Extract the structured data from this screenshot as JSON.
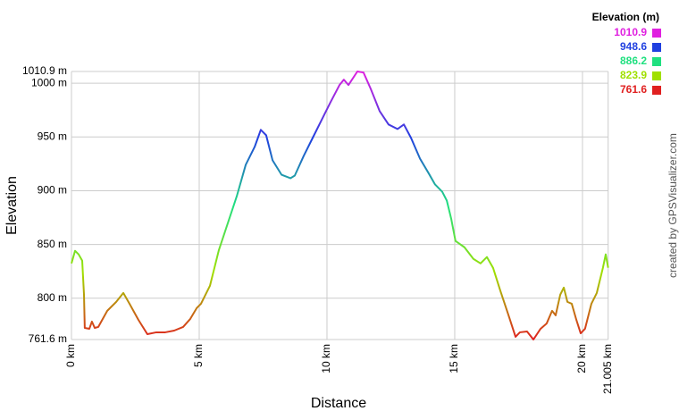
{
  "chart_data": {
    "type": "line",
    "x_label": "Distance",
    "y_label": "Elevation",
    "credit": "created by GPSVisualizer.com",
    "legend": {
      "title": "Elevation (m)",
      "corner": "top-right",
      "items": [
        {
          "value": 1010.9,
          "color": "#e020e0"
        },
        {
          "value": 948.6,
          "color": "#2040e0"
        },
        {
          "value": 886.2,
          "color": "#20e080"
        },
        {
          "value": 823.9,
          "color": "#a0e000"
        },
        {
          "value": 761.6,
          "color": "#e02020"
        }
      ]
    },
    "grid": true,
    "xlim": [
      0,
      21.005
    ],
    "xticks": [
      {
        "value": 0,
        "label": "0 km"
      },
      {
        "value": 5,
        "label": "5 km"
      },
      {
        "value": 10,
        "label": "10 km"
      },
      {
        "value": 15,
        "label": "15 km"
      },
      {
        "value": 20,
        "label": "20 km"
      },
      {
        "value": 21.005,
        "label": "21.005 km"
      }
    ],
    "ylim": [
      761.6,
      1010.9
    ],
    "yticks": [
      {
        "value": 761.6,
        "label": "761.6 m"
      },
      {
        "value": 800,
        "label": "800 m"
      },
      {
        "value": 850,
        "label": "850 m"
      },
      {
        "value": 900,
        "label": "900 m"
      },
      {
        "value": 950,
        "label": "950 m"
      },
      {
        "value": 1000,
        "label": "1000 m"
      },
      {
        "value": 1010.9,
        "label": "1010.9 m"
      }
    ],
    "x": [
      0,
      0.14,
      0.28,
      0.42,
      0.49,
      0.52,
      0.7,
      0.8,
      0.91,
      1.05,
      1.4,
      1.75,
      2.03,
      2.27,
      2.62,
      2.97,
      3.32,
      3.67,
      4.02,
      4.37,
      4.65,
      4.9,
      5.07,
      5.42,
      5.77,
      6.12,
      6.47,
      6.82,
      7.17,
      7.41,
      7.62,
      7.87,
      8.22,
      8.57,
      8.74,
      9.09,
      9.44,
      9.79,
      10.14,
      10.49,
      10.66,
      10.84,
      11.19,
      11.43,
      11.71,
      12.06,
      12.41,
      12.76,
      13.01,
      13.29,
      13.64,
      13.99,
      14.23,
      14.51,
      14.69,
      14.86,
      15.03,
      15.38,
      15.73,
      16.01,
      16.26,
      16.5,
      16.78,
      17.13,
      17.38,
      17.55,
      17.83,
      18.08,
      18.36,
      18.6,
      18.81,
      18.95,
      19.13,
      19.27,
      19.41,
      19.58,
      19.76,
      19.93,
      20.1,
      20.35,
      20.56,
      20.8,
      20.91,
      21.005
    ],
    "values": [
      832.4,
      844.1,
      840.8,
      834.9,
      803.3,
      772.4,
      771.6,
      778.3,
      772.4,
      773.3,
      788.3,
      796.6,
      804.9,
      794.9,
      779.9,
      766.6,
      768.3,
      768.3,
      769.9,
      773.3,
      780.8,
      790.8,
      794.9,
      811.6,
      844.9,
      869.9,
      894.9,
      924.1,
      940.8,
      956.6,
      951.6,
      928.3,
      914.9,
      911.6,
      914.1,
      932.4,
      949.1,
      965.8,
      982.4,
      998.3,
      1003.3,
      998.3,
      1010.9,
      1009.9,
      994.9,
      974.1,
      961.6,
      957.4,
      961.6,
      949.1,
      929.9,
      915.8,
      905.8,
      899.1,
      890.8,
      874.1,
      853.3,
      847.4,
      836.6,
      832.4,
      838.3,
      828.3,
      807.4,
      782.4,
      764.1,
      768.3,
      769.1,
      761.6,
      771.6,
      776.6,
      788.3,
      784.1,
      803.3,
      809.9,
      796.6,
      794.9,
      779.9,
      767.4,
      771.6,
      794.9,
      804.9,
      828.3,
      840.8,
      828.3
    ]
  }
}
